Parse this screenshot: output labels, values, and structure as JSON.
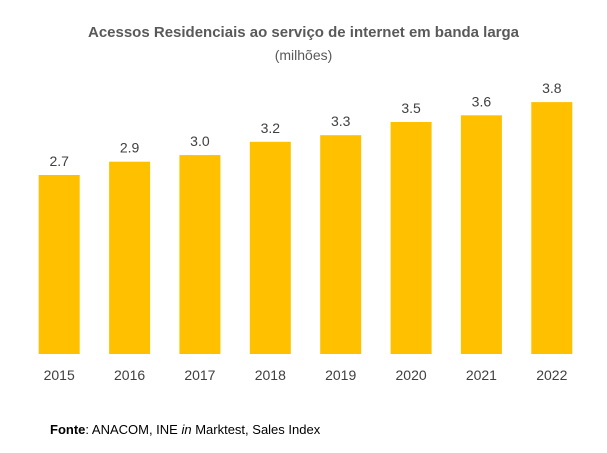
{
  "chart_data": {
    "type": "bar",
    "title": "Acessos Residenciais ao serviço de internet em banda larga",
    "subtitle": "(milhões)",
    "categories": [
      "2015",
      "2016",
      "2017",
      "2018",
      "2019",
      "2020",
      "2021",
      "2022"
    ],
    "values": [
      2.7,
      2.9,
      3.0,
      3.2,
      3.3,
      3.5,
      3.6,
      3.8
    ],
    "value_labels": [
      "2.7",
      "2.9",
      "3.0",
      "3.2",
      "3.3",
      "3.5",
      "3.6",
      "3.8"
    ],
    "xlabel": "",
    "ylabel": "",
    "ylim": [
      0,
      4
    ],
    "grid": false,
    "bar_color": "#FFC000"
  },
  "source": {
    "label": "Fonte",
    "text_before": ": ANACOM, INE ",
    "italic": "in",
    "text_after": " Marktest, Sales Index"
  }
}
